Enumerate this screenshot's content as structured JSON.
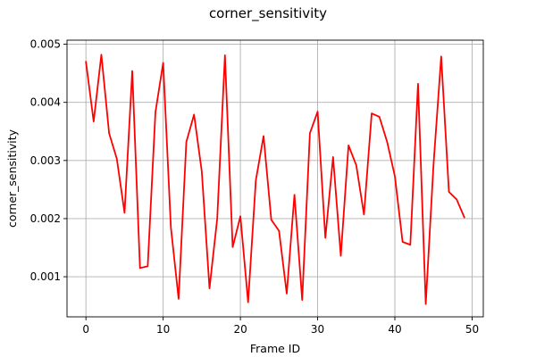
{
  "chart_data": {
    "type": "line",
    "title": "corner_sensitivity",
    "xlabel": "Frame ID",
    "ylabel": "corner_sensitivity",
    "xlim": [
      -2.45,
      51.45
    ],
    "ylim": [
      0.00031,
      0.00507
    ],
    "xticks": [
      0,
      10,
      20,
      30,
      40,
      50
    ],
    "xtick_labels": [
      "0",
      "10",
      "20",
      "30",
      "40",
      "50"
    ],
    "yticks": [
      0.001,
      0.002,
      0.003,
      0.004,
      0.005
    ],
    "ytick_labels": [
      "0.001",
      "0.002",
      "0.003",
      "0.004",
      "0.005"
    ],
    "grid": true,
    "series": [
      {
        "color": "#ff0000",
        "x": [
          0,
          1,
          2,
          3,
          4,
          5,
          6,
          7,
          8,
          9,
          10,
          11,
          12,
          13,
          14,
          15,
          16,
          17,
          18,
          19,
          20,
          21,
          22,
          23,
          24,
          25,
          26,
          27,
          28,
          29,
          30,
          31,
          32,
          33,
          34,
          35,
          36,
          37,
          38,
          39,
          40,
          41,
          42,
          43,
          44,
          45,
          46,
          47,
          48,
          49
        ],
        "values": [
          0.0047,
          0.00367,
          0.00482,
          0.00347,
          0.00303,
          0.0021,
          0.00454,
          0.00115,
          0.00118,
          0.00383,
          0.00468,
          0.00185,
          0.00062,
          0.00332,
          0.00379,
          0.00281,
          0.0008,
          0.002,
          0.00481,
          0.00151,
          0.00204,
          0.00056,
          0.00266,
          0.00342,
          0.00198,
          0.00179,
          0.00071,
          0.00241,
          0.0006,
          0.00347,
          0.00384,
          0.00167,
          0.00306,
          0.00136,
          0.00326,
          0.00292,
          0.00207,
          0.00381,
          0.00375,
          0.00332,
          0.00273,
          0.0016,
          0.00155,
          0.00432,
          0.00053,
          0.00292,
          0.00479,
          0.00246,
          0.00233,
          0.00202
        ]
      }
    ]
  }
}
